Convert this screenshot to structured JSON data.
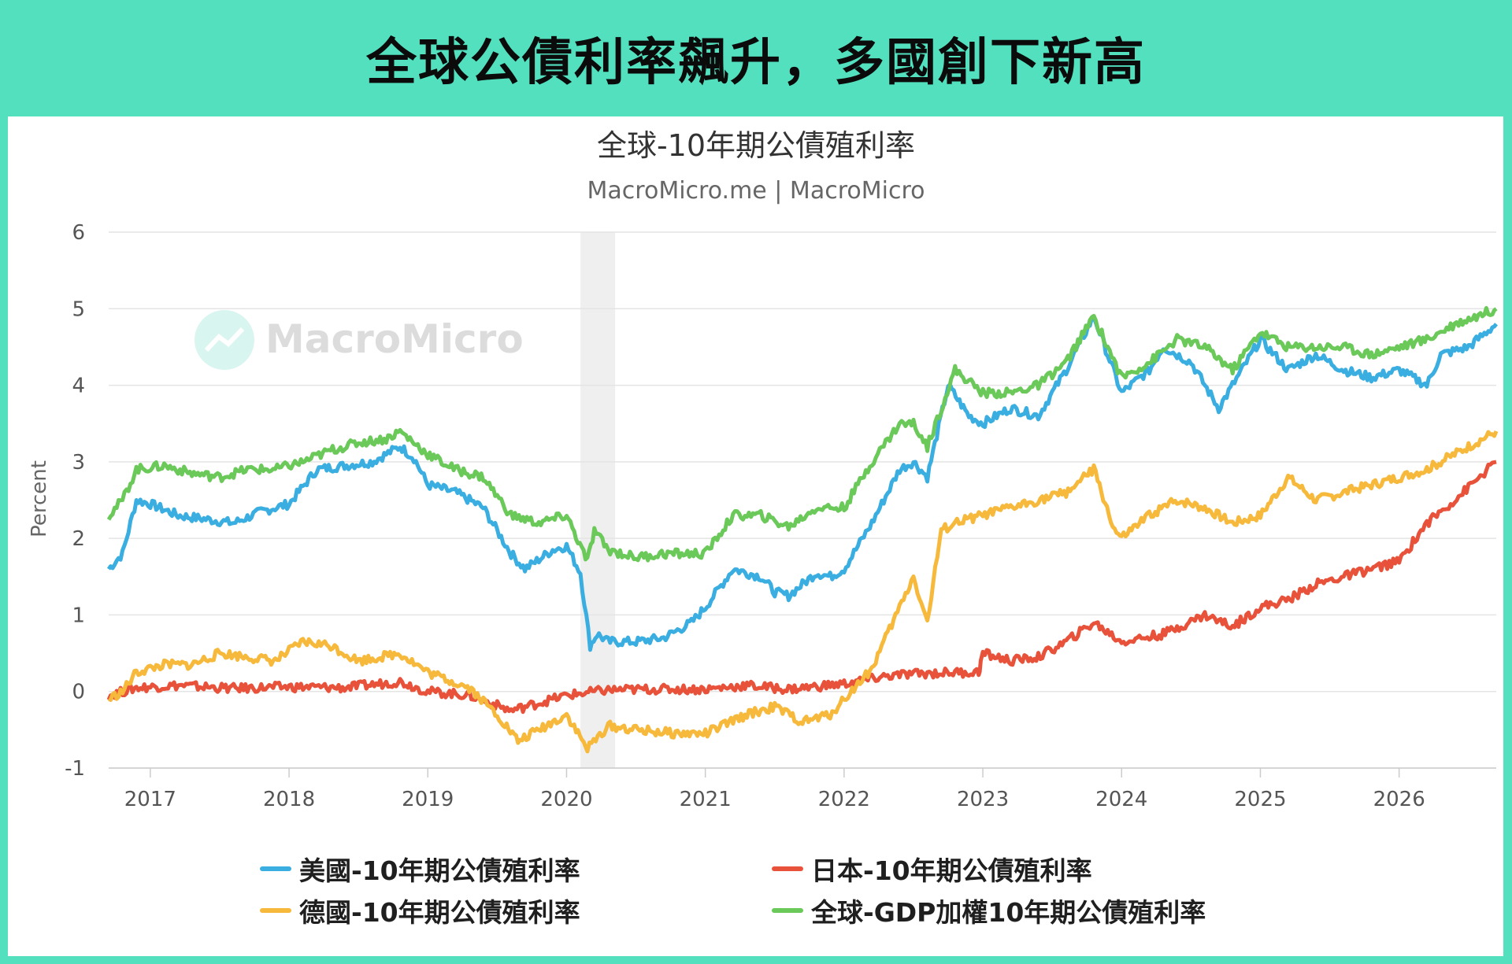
{
  "headline": "全球公債利率飆升，多國創下新高",
  "chart_data": {
    "type": "line",
    "title": "全球-10年期公債殖利率",
    "subtitle": "MacroMicro.me | MacroMicro",
    "watermark": "MacroMicro",
    "ylabel": "Percent",
    "ylim": [
      -1,
      6
    ],
    "yticks": [
      6,
      5,
      4,
      3,
      2,
      1,
      0,
      -1
    ],
    "xlim": [
      2016.7,
      2026.7
    ],
    "xticks": [
      "2017",
      "2018",
      "2019",
      "2020",
      "2021",
      "2022",
      "2023",
      "2024",
      "2025",
      "2026"
    ],
    "shaded_region": [
      2020.1,
      2020.35
    ],
    "grid": true,
    "legend_position": "bottom",
    "colors": {
      "us": "#3aaee0",
      "jp": "#e8523a",
      "de": "#f6b93b",
      "global": "#6bc95a"
    },
    "series": [
      {
        "key": "us",
        "name": "美國-10年期公債殖利率",
        "x": [
          2016.7,
          2016.8,
          2016.9,
          2017.0,
          2017.2,
          2017.4,
          2017.6,
          2017.8,
          2018.0,
          2018.2,
          2018.4,
          2018.6,
          2018.8,
          2018.9,
          2019.0,
          2019.2,
          2019.4,
          2019.6,
          2019.7,
          2019.9,
          2020.0,
          2020.1,
          2020.17,
          2020.22,
          2020.3,
          2020.5,
          2020.7,
          2020.9,
          2021.0,
          2021.2,
          2021.4,
          2021.5,
          2021.6,
          2021.8,
          2021.9,
          2022.0,
          2022.2,
          2022.4,
          2022.5,
          2022.6,
          2022.75,
          2022.9,
          2023.0,
          2023.2,
          2023.4,
          2023.6,
          2023.8,
          2023.9,
          2024.0,
          2024.2,
          2024.3,
          2024.5,
          2024.7,
          2024.8,
          2025.0,
          2025.2,
          2025.4,
          2025.6,
          2025.8,
          2026.0,
          2026.2,
          2026.3,
          2026.5,
          2026.7
        ],
        "y": [
          1.6,
          1.8,
          2.5,
          2.45,
          2.3,
          2.25,
          2.2,
          2.35,
          2.45,
          2.9,
          2.95,
          3.0,
          3.2,
          3.05,
          2.7,
          2.6,
          2.4,
          1.8,
          1.6,
          1.85,
          1.9,
          1.55,
          0.6,
          0.75,
          0.65,
          0.65,
          0.7,
          0.9,
          1.1,
          1.6,
          1.5,
          1.3,
          1.25,
          1.55,
          1.5,
          1.6,
          2.2,
          2.9,
          3.0,
          2.8,
          4.0,
          3.6,
          3.5,
          3.7,
          3.6,
          4.2,
          4.9,
          4.4,
          3.9,
          4.2,
          4.5,
          4.3,
          3.7,
          4.0,
          4.6,
          4.2,
          4.4,
          4.2,
          4.1,
          4.2,
          4.0,
          4.4,
          4.5,
          4.8
        ]
      },
      {
        "key": "jp",
        "name": "日本-10年期公債殖利率",
        "x": [
          2016.7,
          2016.9,
          2017.2,
          2017.6,
          2018.0,
          2018.4,
          2018.8,
          2019.0,
          2019.3,
          2019.6,
          2019.8,
          2020.0,
          2020.3,
          2020.6,
          2021.0,
          2021.3,
          2021.6,
          2022.0,
          2022.3,
          2022.5,
          2022.8,
          2022.97,
          2023.0,
          2023.2,
          2023.4,
          2023.6,
          2023.8,
          2024.0,
          2024.3,
          2024.6,
          2024.8,
          2025.0,
          2025.2,
          2025.4,
          2025.6,
          2025.8,
          2026.0,
          2026.2,
          2026.4,
          2026.7
        ],
        "y": [
          -0.05,
          0.05,
          0.08,
          0.04,
          0.06,
          0.05,
          0.13,
          0.0,
          -0.05,
          -0.25,
          -0.15,
          -0.05,
          0.02,
          0.03,
          0.03,
          0.08,
          0.03,
          0.1,
          0.2,
          0.23,
          0.25,
          0.25,
          0.5,
          0.4,
          0.45,
          0.65,
          0.9,
          0.65,
          0.75,
          1.0,
          0.85,
          1.1,
          1.2,
          1.4,
          1.5,
          1.6,
          1.7,
          2.2,
          2.5,
          3.0
        ]
      },
      {
        "key": "de",
        "name": "德國-10年期公債殖利率",
        "x": [
          2016.7,
          2016.8,
          2016.9,
          2017.1,
          2017.3,
          2017.5,
          2017.7,
          2017.9,
          2018.1,
          2018.3,
          2018.5,
          2018.8,
          2019.0,
          2019.3,
          2019.5,
          2019.65,
          2019.8,
          2020.0,
          2020.15,
          2020.3,
          2020.5,
          2020.8,
          2021.0,
          2021.3,
          2021.5,
          2021.7,
          2021.9,
          2022.0,
          2022.2,
          2022.4,
          2022.5,
          2022.6,
          2022.7,
          2022.8,
          2023.0,
          2023.2,
          2023.4,
          2023.6,
          2023.8,
          2023.95,
          2024.0,
          2024.2,
          2024.4,
          2024.6,
          2024.8,
          2025.0,
          2025.2,
          2025.4,
          2025.6,
          2025.8,
          2026.0,
          2026.2,
          2026.4,
          2026.7
        ],
        "y": [
          -0.1,
          0.0,
          0.25,
          0.35,
          0.35,
          0.5,
          0.45,
          0.4,
          0.65,
          0.6,
          0.4,
          0.5,
          0.25,
          0.05,
          -0.3,
          -0.65,
          -0.5,
          -0.3,
          -0.75,
          -0.45,
          -0.5,
          -0.55,
          -0.55,
          -0.3,
          -0.2,
          -0.4,
          -0.3,
          -0.1,
          0.3,
          1.1,
          1.5,
          0.9,
          2.1,
          2.2,
          2.3,
          2.4,
          2.5,
          2.6,
          2.9,
          2.1,
          2.0,
          2.3,
          2.5,
          2.4,
          2.2,
          2.3,
          2.8,
          2.5,
          2.6,
          2.7,
          2.8,
          2.9,
          3.1,
          3.4
        ]
      },
      {
        "key": "global",
        "name": "全球-GDP加權10年期公債殖利率",
        "x": [
          2016.7,
          2016.8,
          2016.9,
          2017.1,
          2017.3,
          2017.5,
          2017.7,
          2017.9,
          2018.1,
          2018.3,
          2018.5,
          2018.7,
          2018.8,
          2019.0,
          2019.2,
          2019.4,
          2019.6,
          2019.8,
          2020.0,
          2020.15,
          2020.2,
          2020.3,
          2020.5,
          2020.7,
          2021.0,
          2021.2,
          2021.4,
          2021.6,
          2021.8,
          2022.0,
          2022.2,
          2022.4,
          2022.5,
          2022.6,
          2022.8,
          2023.0,
          2023.2,
          2023.4,
          2023.6,
          2023.8,
          2023.9,
          2024.0,
          2024.2,
          2024.4,
          2024.6,
          2024.8,
          2025.0,
          2025.2,
          2025.4,
          2025.6,
          2025.8,
          2026.0,
          2026.2,
          2026.4,
          2026.7
        ],
        "y": [
          2.3,
          2.5,
          2.9,
          2.95,
          2.85,
          2.8,
          2.9,
          2.9,
          3.0,
          3.15,
          3.25,
          3.3,
          3.4,
          3.1,
          2.9,
          2.8,
          2.3,
          2.2,
          2.3,
          1.7,
          2.1,
          1.85,
          1.75,
          1.8,
          1.8,
          2.3,
          2.3,
          2.15,
          2.4,
          2.4,
          3.0,
          3.5,
          3.5,
          3.2,
          4.2,
          3.9,
          3.9,
          4.0,
          4.3,
          4.9,
          4.5,
          4.1,
          4.3,
          4.6,
          4.5,
          4.2,
          4.7,
          4.5,
          4.5,
          4.5,
          4.4,
          4.5,
          4.6,
          4.8,
          5.0
        ]
      }
    ]
  }
}
